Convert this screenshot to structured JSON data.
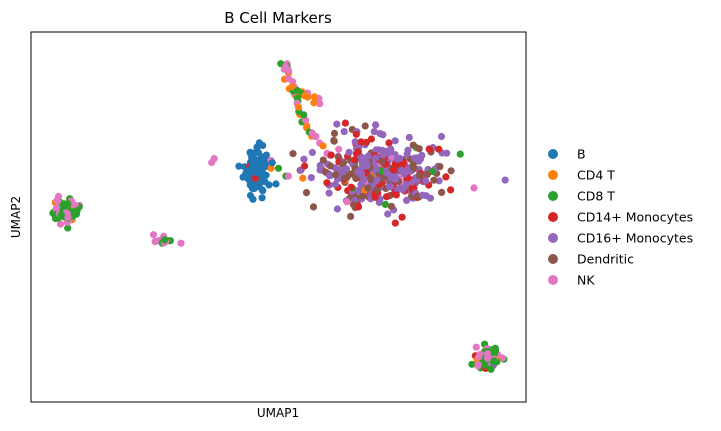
{
  "chart_data": {
    "type": "scatter",
    "title": "B Cell Markers",
    "xlabel": "UMAP1",
    "ylabel": "UMAP2",
    "xlim": [
      -6,
      14
    ],
    "ylim": [
      -10,
      9
    ],
    "grid": false,
    "xticks": false,
    "yticks": false,
    "legend_position": "right",
    "series": [
      {
        "name": "B",
        "color": "#1f77b4"
      },
      {
        "name": "CD4 T",
        "color": "#ff7f0e"
      },
      {
        "name": "CD8 T",
        "color": "#2ca02c"
      },
      {
        "name": "CD14+ Monocytes",
        "color": "#d62728"
      },
      {
        "name": "CD16+ Monocytes",
        "color": "#9467bd"
      },
      {
        "name": "Dendritic",
        "color": "#8c564b"
      },
      {
        "name": "NK",
        "color": "#e377c2"
      }
    ],
    "clusters": [
      {
        "x": 3.1,
        "y": 1.9,
        "sx": 0.2,
        "sy": 0.5,
        "n": 150,
        "mix": [
          5,
          0,
          0,
          0,
          0,
          0,
          0
        ],
        "extra": [
          [
            0,
            0.05
          ],
          [
            3,
            0.03
          ]
        ]
      },
      {
        "x": 8.1,
        "y": 1.8,
        "sx": 1.3,
        "sy": 0.9,
        "n": 400,
        "mix": [
          0,
          0.02,
          0.03,
          0.22,
          0.42,
          0.28,
          0.03
        ]
      },
      {
        "x": -4.6,
        "y": -0.2,
        "sx": 0.25,
        "sy": 0.28,
        "n": 90,
        "mix": [
          0,
          0.04,
          0.45,
          0.02,
          0.02,
          0,
          0.47
        ]
      },
      {
        "x": 12.4,
        "y": -7.7,
        "sx": 0.25,
        "sy": 0.28,
        "n": 90,
        "mix": [
          0,
          0.04,
          0.45,
          0.06,
          0.02,
          0,
          0.43
        ]
      },
      {
        "x": -0.6,
        "y": -1.7,
        "sx": 0.35,
        "sy": 0.12,
        "n": 12,
        "mix": [
          0,
          0.3,
          0.35,
          0,
          0,
          0,
          0.35
        ]
      },
      {
        "x": 4.3,
        "y": 7.2,
        "sx": 0.1,
        "sy": 0.1,
        "n": 8,
        "mix": [
          0,
          0,
          0.3,
          0,
          0,
          0,
          0.7
        ]
      }
    ],
    "paths": [
      {
        "from": [
          4.3,
          7.0
        ],
        "to": [
          4.9,
          4.8
        ],
        "n": 14,
        "mix": [
          0,
          0.45,
          0.3,
          0,
          0,
          0,
          0.25
        ]
      },
      {
        "from": [
          4.5,
          6.2
        ],
        "to": [
          5.6,
          5.3
        ],
        "n": 16,
        "mix": [
          0,
          0.5,
          0.25,
          0,
          0,
          0,
          0.25
        ]
      },
      {
        "from": [
          4.8,
          4.6
        ],
        "to": [
          5.8,
          3.2
        ],
        "n": 12,
        "mix": [
          0,
          0.5,
          0.15,
          0,
          0,
          0,
          0.35
        ]
      }
    ],
    "singles": [
      {
        "x": 1.3,
        "y": 2.3,
        "c": 6
      },
      {
        "x": 1.4,
        "y": 2.5,
        "c": 6
      },
      {
        "x": 3.7,
        "y": 2.4,
        "c": 6
      },
      {
        "x": 4.0,
        "y": 2.0,
        "c": 2
      },
      {
        "x": 4.4,
        "y": 1.6,
        "c": 6
      },
      {
        "x": 4.3,
        "y": 1.6,
        "c": 2
      },
      {
        "x": 3.9,
        "y": 1.2,
        "c": 0
      },
      {
        "x": 3.7,
        "y": 2.0,
        "c": 1
      }
    ]
  }
}
